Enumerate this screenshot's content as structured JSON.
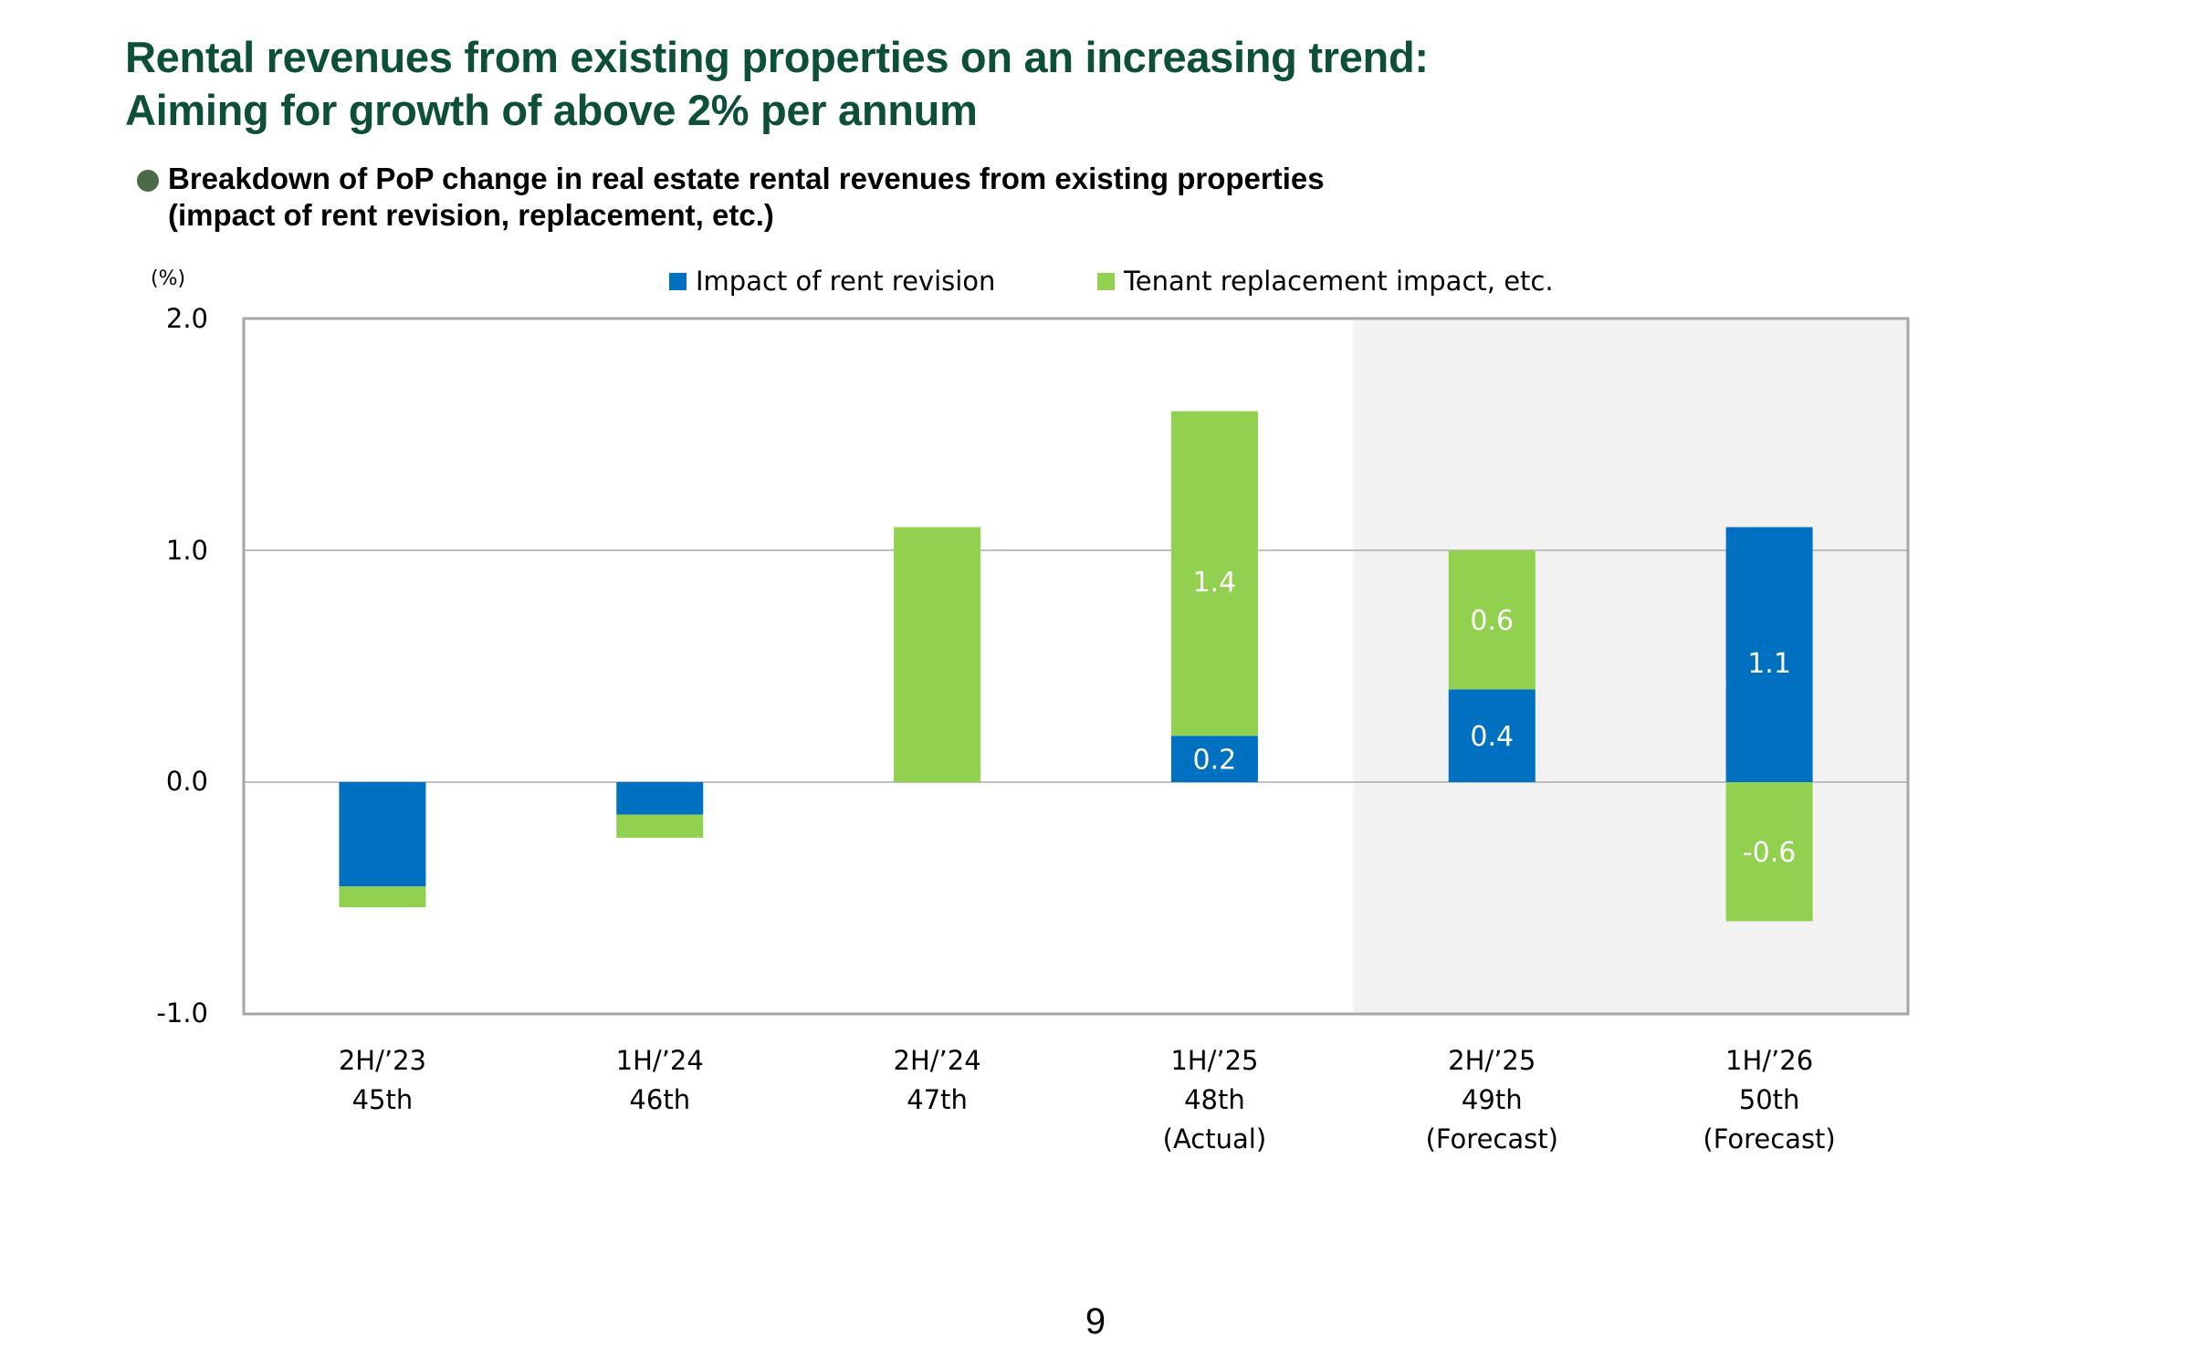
{
  "header": {
    "title_line1": "Rental revenues from existing properties on an increasing trend:",
    "title_line2": "Aiming for growth of above 2% per annum",
    "subtitle_line1": "Breakdown of PoP change in real estate rental revenues from existing properties",
    "subtitle_line2": "(impact of rent revision, replacement, etc.)",
    "bullet_icon": "filled-circle",
    "bullet_color": "#4A6B45",
    "title_color": "#0D4F38"
  },
  "page_number": "9",
  "chart_data": {
    "type": "bar",
    "stacked": true,
    "title": "Breakdown of PoP change in real estate rental revenues from existing properties (impact of rent revision, replacement, etc.)",
    "ylabel": "(%)",
    "xlabel": "",
    "ylim": [
      -1.0,
      2.0
    ],
    "yticks": [
      "2.0",
      "1.0",
      "0.0",
      "-1.0"
    ],
    "ytick_values": [
      2.0,
      1.0,
      0.0,
      -1.0
    ],
    "grid": true,
    "legend_position": "top-center",
    "categories": [
      {
        "period": "2H/’23",
        "fiscal": "45th",
        "note": ""
      },
      {
        "period": "1H/’24",
        "fiscal": "46th",
        "note": ""
      },
      {
        "period": "2H/’24",
        "fiscal": "47th",
        "note": ""
      },
      {
        "period": "1H/’25",
        "fiscal": "48th",
        "note": "(Actual)"
      },
      {
        "period": "2H/’25",
        "fiscal": "49th",
        "note": "(Forecast)"
      },
      {
        "period": "1H/’26",
        "fiscal": "50th",
        "note": "(Forecast)"
      }
    ],
    "series": [
      {
        "name": "Impact of rent revision",
        "color": "#0070C0",
        "values": [
          -0.45,
          -0.14,
          0.0,
          0.2,
          0.4,
          1.1
        ],
        "labels": [
          "",
          "",
          "",
          "0.2",
          "0.4",
          "1.1"
        ]
      },
      {
        "name": "Tenant replacement impact, etc.",
        "color": "#92D050",
        "values": [
          -0.09,
          -0.1,
          1.1,
          1.4,
          0.6,
          -0.6
        ],
        "labels": [
          "",
          "",
          "",
          "1.4",
          "0.6",
          "-0.6"
        ]
      }
    ],
    "shaded_region": {
      "from_category_index": 4,
      "to_category_index": 5,
      "meaning": "forecast",
      "color": "#F2F2F2"
    },
    "grid_color": "#BFBFBF",
    "border_color": "#A6A6A6"
  }
}
